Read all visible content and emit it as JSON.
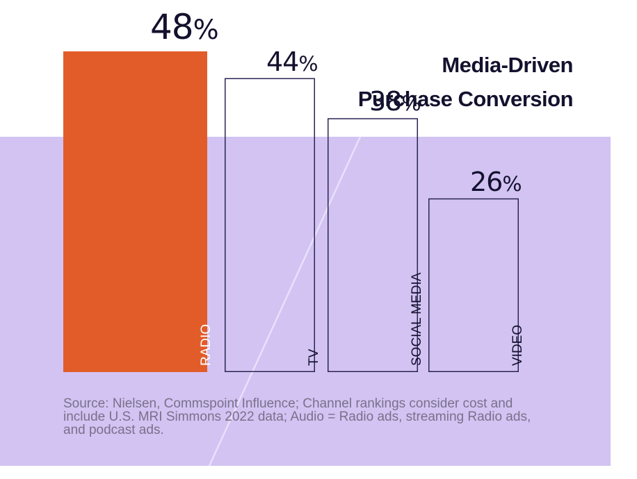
{
  "chart_data": {
    "type": "bar",
    "title": "Media-Driven Purchase Conversion",
    "title_lines": [
      "Media-Driven",
      "Purchase Conversion"
    ],
    "categories": [
      "RADIO",
      "TV",
      "SOCIAL MEDIA",
      "VIDEO"
    ],
    "values": [
      48,
      44,
      38,
      26
    ],
    "value_labels": [
      "48%",
      "44%",
      "38%",
      "26%"
    ],
    "unit": "%",
    "xlabel": "",
    "ylabel": "",
    "grid": false,
    "legend": "none",
    "highlight_category": "RADIO"
  },
  "colors": {
    "highlight_bar": "#e25c29",
    "panel": "#d2c3f3",
    "outline": "#2a2450",
    "text": "#14112e",
    "source_text": "#7a7089",
    "diagonal": "#e9e0fb"
  },
  "source_note": "Source: Nielsen, Commspoint Influence; Channel rankings consider cost and include U.S. MRI Simmons 2022 data; Audio = Radio ads, streaming Radio ads, and podcast ads."
}
